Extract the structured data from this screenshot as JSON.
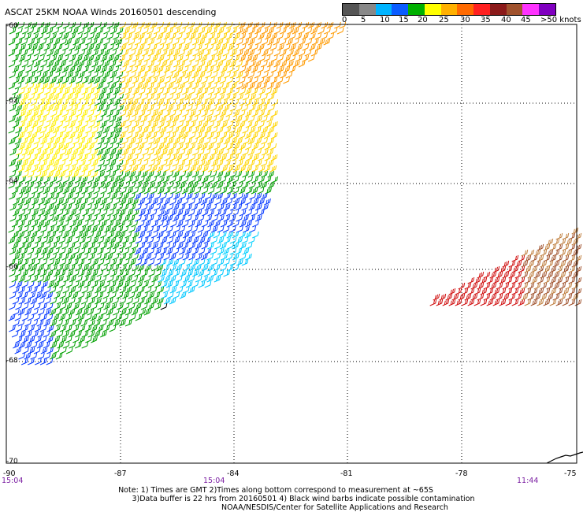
{
  "title": "ASCAT 25KM NOAA Winds 20160501 descending",
  "legend": {
    "labels": [
      "0",
      "5",
      "10",
      "15",
      "20",
      "25",
      "30",
      "35",
      "40",
      "45",
      ">50 knots"
    ],
    "colors": [
      "#555555",
      "#888888",
      "#00b4ff",
      "#0a5cff",
      "#00b000",
      "#ffff00",
      "#ffb000",
      "#ff6a00",
      "#ff2020",
      "#8b1a1a",
      "#a0522d",
      "#ff33ff",
      "#8000c0"
    ]
  },
  "lat_labels": [
    "-60",
    "-62",
    "-64",
    "-66",
    "-68",
    "-70"
  ],
  "lon_labels": [
    "-90",
    "-87",
    "-84",
    "-81",
    "-78",
    "-75"
  ],
  "time_labels": [
    "15:04",
    "15:04",
    "11:44"
  ],
  "notes": {
    "line1": "Note: 1) Times are GMT 2)Times along bottom correspond to measurement at ~65S",
    "line2": "3)Data buffer is 22 hrs from 20160501 4) Black wind barbs indicate possible contamination",
    "line3": "NOAA/NESDIS/Center for Satellite Applications and Research"
  }
}
